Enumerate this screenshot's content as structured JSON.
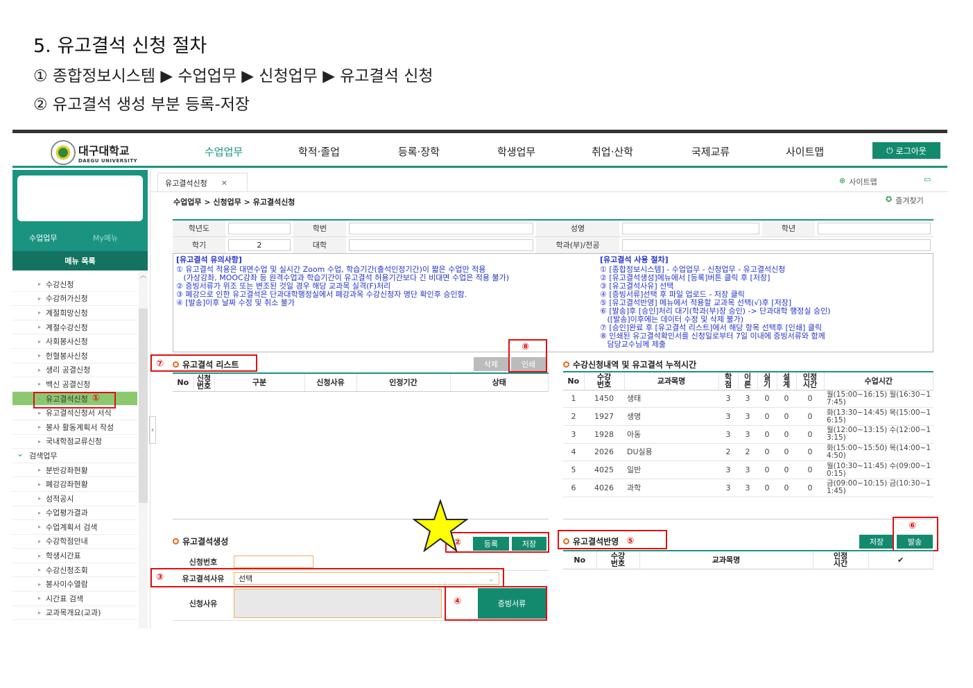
{
  "doc": {
    "title": "5. 유고결석 신청 절차",
    "step1": "① 종합정보시스템 ▶ 수업업무 ▶ 신청업무 ▶ 유고결석 신청",
    "step2": "② 유고결석 생성 부분 등록-저장"
  },
  "header": {
    "logo_ko": "대구대학교",
    "logo_en": "DAEGU UNIVERSITY",
    "nav": [
      "수업업무",
      "학적·졸업",
      "등록·장학",
      "학생업무",
      "취업·산학",
      "국제교류",
      "사이트맵"
    ],
    "logout": "로그아웃",
    "accent": "#1a9480"
  },
  "sidebar": {
    "tabs": [
      "수업업무",
      "My메뉴"
    ],
    "menu_title": "메뉴 목록",
    "items": [
      "수강신청",
      "수강허가신청",
      "계절희망신청",
      "계절수강신청",
      "사회봉사신청",
      "헌혈봉사신청",
      "생리 공결신청",
      "백신 공결신청",
      "유고결석신청",
      "유고결석신청서 서식",
      "봉사 활동계획서 작성",
      "국내학점교류신청",
      "검색업무",
      "분반강좌현황",
      "폐강강좌현황",
      "성적공시",
      "수업평가결과",
      "수업계획서 검색",
      "수강학점안내",
      "학생시간표",
      "수강신청조회",
      "봉사이수열람",
      "시간표 검색",
      "교과목개요(교과)"
    ],
    "selected": "유고결석신청",
    "selected_marker": "①"
  },
  "tab": {
    "label": "유고결석신청",
    "close": "×"
  },
  "toplinks": {
    "sitemap": "사이트맵",
    "favorites": "즐겨찾기"
  },
  "breadcrumb": "수업업무 > 신청업무 > 유고결석신청",
  "info": {
    "year_label": "학년도",
    "year": "",
    "hakbun_label": "학번",
    "hakbun": "",
    "name_label": "성명",
    "name": "",
    "grade_label": "학년",
    "grade": "",
    "term_label": "학기",
    "term": "2",
    "college_label": "대학",
    "college": "",
    "dept_label": "학과(부)/전공",
    "dept": ""
  },
  "notice": {
    "left_title": "[유고결석 유의사항]",
    "left": [
      "① 유고결석 적용은 대면수업 및 실시간 Zoom 수업, 학습기간(출석인정기간)이 짧은 수업만 적용",
      "   (가상강좌, MOOC강좌 등 원격수업과 학습기간이 유고결석 허용기간보다 긴 비대면 수업은 적용 불가)",
      "② 증빙서류가 위조 또는 변조된 것일 경우 해당 교과목 실격(F)처리",
      "③ 폐강으로 인한 유고결석은 단과대학행정실에서 폐강과목 수강신청자 명단 확인후 승인함.",
      "④ [발송]이후 날짜 수정 및 취소 불가"
    ],
    "right_title": "[유고결석 사용 절차]",
    "right": [
      "① [종합정보시스템] - 수업업무 - 신청업무 - 유고결석신청",
      "② [유고결석생성]메뉴에서 [등록]버튼 클릭 후 [저장]",
      "③ [유고결석사유] 선택",
      "④ [증빙서류]선택 후 파일 업로드 - 저장 클릭",
      "⑤ [유고결석반영] 메뉴에서 적용할 교과목 선택(√)후 [저장]",
      "⑥ [발송]후 [승인]처리 대기(학과(부)장 승인) -> 단과대학 행정실 승인)",
      "   ([발송]이후에는 데이터 수정 및 삭제 불가)",
      "⑦ [승인]완료 후 [유고결석 리스트]에서 해당 항목 선택후 [인쇄] 클릭",
      "⑧ 인쇄된 유고결석확인서를 신청일로부터 7일 이내에 증빙서류와 함께",
      "   담당교수님께 제출"
    ]
  },
  "list": {
    "title": "유고결석 리스트",
    "marker": "⑦",
    "print_marker": "⑧",
    "delete": "삭제",
    "print": "인쇄",
    "columns": [
      "No",
      "신청\n번호",
      "구분",
      "신청사유",
      "인정기간",
      "상태"
    ]
  },
  "courses": {
    "title": "수강신청내역 및 유고결석 누적시간",
    "columns": [
      "No",
      "수강\n번호",
      "교과목명",
      "학\n점",
      "이\n론",
      "실\n기",
      "설\n계",
      "인정\n시간",
      "수업시간"
    ],
    "rows": [
      [
        "1",
        "1450",
        "생태",
        "3",
        "3",
        "0",
        "0",
        "0",
        "월(15:00~16:15) 월(16:30~17:45)"
      ],
      [
        "2",
        "1927",
        "생명",
        "3",
        "3",
        "0",
        "0",
        "0",
        "화(13:30~14:45) 목(15:00~16:15)"
      ],
      [
        "3",
        "1928",
        "아동",
        "3",
        "3",
        "0",
        "0",
        "0",
        "월(12:00~13:15) 수(12:00~13:15)"
      ],
      [
        "4",
        "2026",
        "DU실용",
        "2",
        "2",
        "0",
        "0",
        "0",
        "화(15:00~15:50) 목(14:00~14:50)"
      ],
      [
        "5",
        "4025",
        "일반",
        "3",
        "3",
        "0",
        "0",
        "0",
        "월(10:30~11:45) 수(09:00~10:15)"
      ],
      [
        "6",
        "4026",
        "과학",
        "3",
        "3",
        "0",
        "0",
        "0",
        "금(09:00~10:15) 금(10:30~11:45)"
      ]
    ]
  },
  "create": {
    "title": "유고결석생성",
    "marker": "②",
    "register": "등록",
    "save": "저장",
    "no_label": "신청번호",
    "reason_label": "유고결석사유",
    "reason_marker": "③",
    "reason_value": "선택",
    "detail_label": "신청사유",
    "doc_marker": "④",
    "doc_button": "증빙서류"
  },
  "apply": {
    "title": "유고결석반영",
    "marker": "⑤",
    "send_marker": "⑥",
    "save": "저장",
    "send": "발송",
    "columns": [
      "No",
      "수강\n번호",
      "교과목명",
      "인정\n시간",
      "✔"
    ]
  }
}
